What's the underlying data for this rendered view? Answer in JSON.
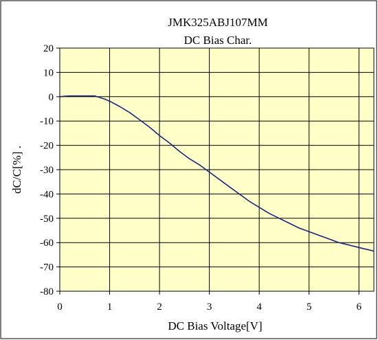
{
  "chart_data": {
    "type": "line",
    "title": "JMK325ABJ107MM",
    "subtitle": "DC Bias Char.",
    "xlabel": "DC Bias Voltage[V]",
    "ylabel": "dC/C[%] .",
    "xlim": [
      0,
      6.3
    ],
    "ylim": [
      -80,
      20
    ],
    "xticks": [
      0,
      1,
      2,
      3,
      4,
      5,
      6
    ],
    "yticks": [
      20,
      10,
      0,
      -10,
      -20,
      -30,
      -40,
      -50,
      -60,
      -70,
      -80
    ],
    "grid": true,
    "plot_background": "#ffffc8",
    "line_color": "#1a237e",
    "series": [
      {
        "x": [
          0,
          0.1,
          0.2,
          0.3,
          0.4,
          0.5,
          0.6,
          0.7,
          0.8,
          0.9,
          1.0,
          1.2,
          1.4,
          1.6,
          1.8,
          2.0,
          2.2,
          2.4,
          2.6,
          2.8,
          3.0,
          3.2,
          3.4,
          3.6,
          3.8,
          4.0,
          4.2,
          4.4,
          4.6,
          4.8,
          5.0,
          5.2,
          5.4,
          5.6,
          5.8,
          6.0,
          6.2,
          6.3
        ],
        "y": [
          0,
          0.2,
          0.3,
          0.3,
          0.3,
          0.3,
          0.3,
          0.3,
          -0.3,
          -1.0,
          -1.8,
          -4.0,
          -6.5,
          -9.5,
          -12.5,
          -16.0,
          -19.0,
          -22.5,
          -25.5,
          -28.0,
          -31.0,
          -34.0,
          -37.0,
          -40.0,
          -43.0,
          -45.5,
          -48.0,
          -50.0,
          -52.0,
          -54.0,
          -55.5,
          -57.0,
          -58.5,
          -60.0,
          -61.0,
          -62.0,
          -63.0,
          -63.5
        ]
      }
    ]
  }
}
